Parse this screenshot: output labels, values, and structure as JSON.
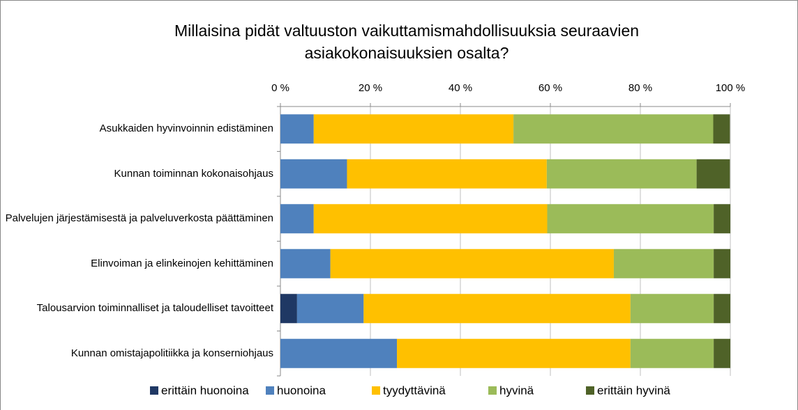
{
  "chart_data": {
    "type": "stacked_barh",
    "title": "Millaisina pidät valtuuston vaikuttamismahdollisuuksia seuraavien asiakokonaisuuksien osalta?",
    "categories": [
      "Asukkaiden hyvinvoinnin edistäminen",
      "Kunnan toiminnan kokonaisohjaus",
      "Palvelujen järjestämisestä ja palveluverkosta päättäminen",
      "Elinvoiman ja elinkeinojen kehittäminen",
      "Talousarvion toiminnalliset ja taloudelliset tavoitteet",
      "Kunnan omistajapolitiikka ja konserniohjaus"
    ],
    "series": [
      {
        "name": "erittäin huonoina",
        "color": "#1f3864",
        "values": [
          0,
          0,
          0,
          0,
          3.7,
          0
        ]
      },
      {
        "name": "huonoina",
        "color": "#4f81bd",
        "values": [
          7.4,
          14.8,
          7.4,
          11.1,
          14.8,
          25.9
        ]
      },
      {
        "name": "tyydyttävinä",
        "color": "#ffc000",
        "values": [
          44.4,
          44.4,
          51.9,
          63.0,
          59.3,
          51.9
        ]
      },
      {
        "name": "hyvinä",
        "color": "#9bbb59",
        "values": [
          44.4,
          33.3,
          37.0,
          22.2,
          18.5,
          18.5
        ]
      },
      {
        "name": "erittäin hyvinä",
        "color": "#4f6228",
        "values": [
          3.7,
          7.4,
          3.7,
          3.7,
          3.7,
          3.7
        ]
      }
    ],
    "xlim": [
      0,
      100
    ],
    "xticks": [
      {
        "value": 0,
        "label": "0 %"
      },
      {
        "value": 20,
        "label": "20 %"
      },
      {
        "value": 40,
        "label": "40 %"
      },
      {
        "value": 60,
        "label": "60 %"
      },
      {
        "value": 80,
        "label": "80 %"
      },
      {
        "value": 100,
        "label": "100 %"
      }
    ],
    "grid": true,
    "legend": "bottom"
  }
}
